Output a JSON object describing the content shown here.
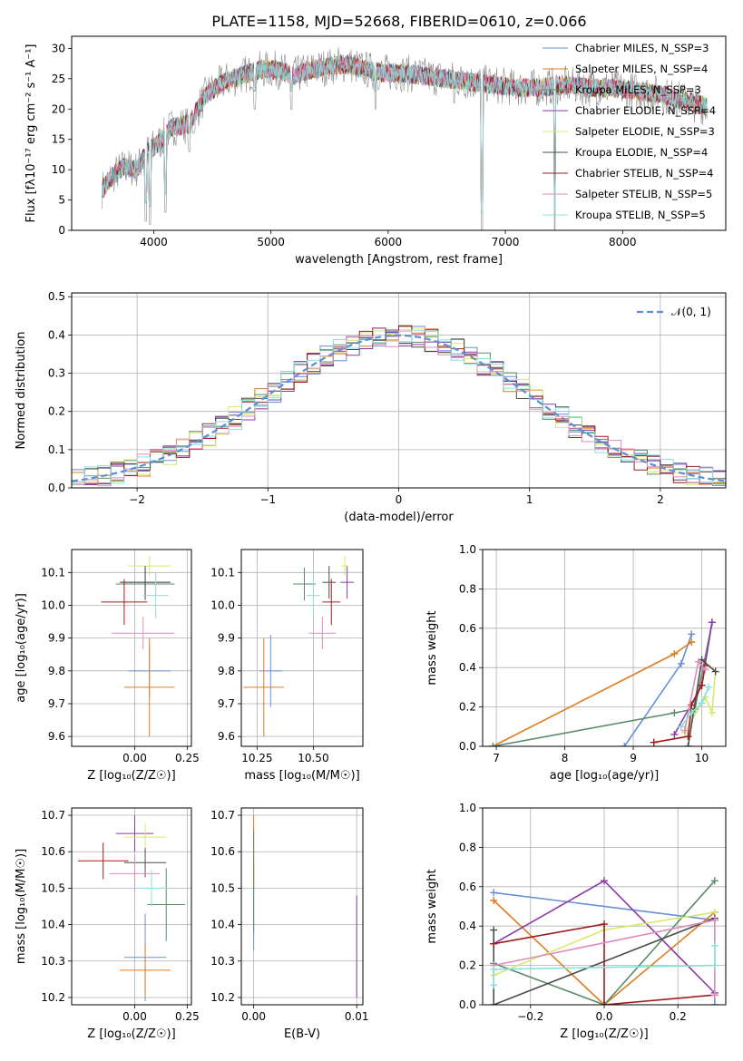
{
  "palette": [
    "#6a8fd6",
    "#e07b1e",
    "#5b8c6a",
    "#8e3aa9",
    "#d4ea6b",
    "#4d4d4d",
    "#a01c1c",
    "#e08cbf",
    "#86e0dc"
  ],
  "figure_title": "PLATE=1158, MJD=52668, FIBERID=0610, z=0.066",
  "chart_data": [
    {
      "id": "spectrum",
      "type": "line",
      "xlabel": "wavelength [Angstrom, rest frame]",
      "ylabel": "Flux [fλ10⁻¹⁷ erg cm⁻² s⁻¹ A⁻¹]",
      "xlim": [
        3300,
        8880
      ],
      "ylim": [
        0,
        32
      ],
      "xticks": [
        4000,
        5000,
        6000,
        7000,
        8000
      ],
      "yticks": [
        0,
        5,
        10,
        15,
        20,
        25,
        30
      ],
      "grid": false,
      "legend_position": "right",
      "legend": [
        "Chabrier MILES, N_SSP=3",
        "Salpeter MILES, N_SSP=4",
        "Kroupa MILES, N_SSP=3",
        "Chabrier ELODIE, N_SSP=4",
        "Salpeter ELODIE, N_SSP=3",
        "Kroupa ELODIE, N_SSP=4",
        "Chabrier STELIB, N_SSP=4",
        "Salpeter STELIB, N_SSP=5",
        "Kroupa STELIB, N_SSP=5"
      ],
      "legend_colors": [
        "#6a8fd6",
        "#e07b1e",
        "#5b8c6a",
        "#8e3aa9",
        "#d4ea6b",
        "#4d4d4d",
        "#a01c1c",
        "#e08cbf",
        "#86e0dc"
      ],
      "continuum": [
        [
          3550,
          6.5
        ],
        [
          3650,
          9
        ],
        [
          3750,
          10.5
        ],
        [
          3850,
          10
        ],
        [
          3950,
          13
        ],
        [
          4050,
          14.5
        ],
        [
          4150,
          17
        ],
        [
          4300,
          17.5
        ],
        [
          4450,
          22.5
        ],
        [
          4600,
          24.5
        ],
        [
          4750,
          25.5
        ],
        [
          4900,
          26.5
        ],
        [
          5050,
          26.5
        ],
        [
          5200,
          25.5
        ],
        [
          5350,
          26.5
        ],
        [
          5500,
          27
        ],
        [
          5650,
          27.5
        ],
        [
          5800,
          26.5
        ],
        [
          5950,
          26
        ],
        [
          6100,
          26
        ],
        [
          6300,
          25.5
        ],
        [
          6500,
          25
        ],
        [
          6700,
          24.5
        ],
        [
          6900,
          24
        ],
        [
          7100,
          23.5
        ],
        [
          7300,
          23.5
        ],
        [
          7500,
          24
        ],
        [
          7700,
          23.5
        ],
        [
          7900,
          23.5
        ],
        [
          8100,
          23
        ],
        [
          8300,
          22.5
        ],
        [
          8500,
          21.5
        ],
        [
          8700,
          20.5
        ]
      ],
      "absorption_lines": [
        [
          3933,
          1.5
        ],
        [
          3968,
          1
        ],
        [
          4101,
          3
        ],
        [
          4304,
          13
        ],
        [
          4340,
          16
        ],
        [
          4861,
          20
        ],
        [
          5175,
          20
        ],
        [
          5890,
          20
        ],
        [
          6563,
          21
        ],
        [
          6800,
          0
        ],
        [
          7420,
          0
        ]
      ]
    },
    {
      "id": "residuals",
      "type": "histogram",
      "xlabel": "(data-model)/error",
      "ylabel": "Normed distribution",
      "xlim": [
        -2.5,
        2.5
      ],
      "ylim": [
        0,
        0.51
      ],
      "xticks": [
        -2,
        -1,
        0,
        1,
        2
      ],
      "yticks": [
        0.0,
        0.1,
        0.2,
        0.3,
        0.4,
        0.5
      ],
      "grid": true,
      "legend": "𝒩(0, 1)",
      "legend_position": "top-right",
      "normal_curve": {
        "mean": 0,
        "sigma": 1
      },
      "bin_width": 0.1
    },
    {
      "id": "age_vs_z",
      "type": "errorbar",
      "xlabel": "Z [log₁₀(Z/Z☉)]",
      "ylabel": "age  [log₁₀(age/yr)]",
      "xlim": [
        -0.3,
        0.27
      ],
      "ylim": [
        9.57,
        10.17
      ],
      "xticks": [
        0.0,
        0.25
      ],
      "yticks": [
        9.6,
        9.7,
        9.8,
        9.9,
        10.0,
        10.1
      ],
      "grid": true,
      "points": [
        {
          "x": 0.07,
          "y": 9.8,
          "xerr": 0.1,
          "yerr": 0.08
        },
        {
          "x": 0.07,
          "y": 9.75,
          "xerr": 0.12,
          "yerr": 0.15
        },
        {
          "x": 0.05,
          "y": 10.065,
          "xerr": 0.14,
          "yerr": 0.05
        },
        {
          "x": 0.05,
          "y": 10.07,
          "xerr": 0.12,
          "yerr": 0.05
        },
        {
          "x": 0.07,
          "y": 10.12,
          "xerr": 0.1,
          "yerr": 0.03
        },
        {
          "x": 0.05,
          "y": 10.07,
          "xerr": 0.12,
          "yerr": 0.05
        },
        {
          "x": -0.05,
          "y": 10.01,
          "xerr": 0.11,
          "yerr": 0.07
        },
        {
          "x": 0.04,
          "y": 9.915,
          "xerr": 0.15,
          "yerr": 0.05
        },
        {
          "x": 0.1,
          "y": 10.03,
          "xerr": 0.06,
          "yerr": 0.07
        }
      ]
    },
    {
      "id": "age_vs_mass",
      "type": "errorbar",
      "xlabel": "mass [log₁₀(M/M☉)]",
      "ylabel": "",
      "xlim": [
        10.18,
        10.72
      ],
      "ylim": [
        9.57,
        10.17
      ],
      "xticks": [
        10.25,
        10.5
      ],
      "yticks": [
        9.6,
        9.7,
        9.8,
        9.9,
        10.0,
        10.1
      ],
      "grid": true,
      "points": [
        {
          "x": 10.31,
          "y": 9.8,
          "xerr": 0.05,
          "yerr": 0.11
        },
        {
          "x": 10.28,
          "y": 9.75,
          "xerr": 0.09,
          "yerr": 0.15
        },
        {
          "x": 10.46,
          "y": 10.065,
          "xerr": 0.05,
          "yerr": 0.05
        },
        {
          "x": 10.65,
          "y": 10.07,
          "xerr": 0.03,
          "yerr": 0.05
        },
        {
          "x": 10.64,
          "y": 10.12,
          "xerr": 0.02,
          "yerr": 0.03
        },
        {
          "x": 10.57,
          "y": 10.07,
          "xerr": 0.03,
          "yerr": 0.05
        },
        {
          "x": 10.58,
          "y": 10.01,
          "xerr": 0.04,
          "yerr": 0.07
        },
        {
          "x": 10.54,
          "y": 9.915,
          "xerr": 0.06,
          "yerr": 0.05
        },
        {
          "x": 10.5,
          "y": 10.03,
          "xerr": 0.03,
          "yerr": 0.07
        }
      ]
    },
    {
      "id": "weight_vs_age",
      "type": "line",
      "xlabel": "age  [log₁₀(age/yr)]",
      "ylabel": "mass weight",
      "xlim": [
        6.8,
        10.35
      ],
      "ylim": [
        0,
        1
      ],
      "xticks": [
        7,
        8,
        9,
        10
      ],
      "yticks": [
        0.0,
        0.2,
        0.4,
        0.6,
        0.8,
        1.0
      ],
      "grid": true,
      "series": [
        [
          [
            8.87,
            0
          ],
          [
            9.7,
            0.42
          ],
          [
            9.85,
            0.57
          ]
        ],
        [
          [
            6.95,
            0
          ],
          [
            9.6,
            0.47
          ],
          [
            9.85,
            0.53
          ]
        ],
        [
          [
            6.95,
            0
          ],
          [
            9.6,
            0.17
          ],
          [
            9.9,
            0.19
          ],
          [
            10.15,
            0.63
          ]
        ],
        [
          [
            9.6,
            0.06
          ],
          [
            10.0,
            0.31
          ],
          [
            10.15,
            0.63
          ]
        ],
        [
          [
            9.75,
            0.07
          ],
          [
            10.05,
            0.25
          ],
          [
            10.15,
            0.17
          ],
          [
            10.2,
            0.38
          ]
        ],
        [
          [
            9.8,
            0.0
          ],
          [
            10.0,
            0.44
          ],
          [
            10.2,
            0.38
          ]
        ],
        [
          [
            9.3,
            0.02
          ],
          [
            9.8,
            0.05
          ],
          [
            9.85,
            0.21
          ],
          [
            10.0,
            0.31
          ],
          [
            10.05,
            0.41
          ]
        ],
        [
          [
            9.75,
            0.08
          ],
          [
            9.95,
            0.43
          ],
          [
            10.05,
            0.39
          ]
        ],
        [
          [
            9.7,
            0.1
          ],
          [
            9.85,
            0.17
          ],
          [
            10.0,
            0.22
          ],
          [
            10.1,
            0.3
          ]
        ]
      ]
    },
    {
      "id": "mass_vs_z",
      "type": "errorbar",
      "xlabel": "Z [log₁₀(Z/Z☉)]",
      "ylabel": "mass [log₁₀(M/M☉)]",
      "xlim": [
        -0.3,
        0.27
      ],
      "ylim": [
        10.18,
        10.72
      ],
      "xticks": [
        0.0,
        0.25
      ],
      "yticks": [
        10.2,
        10.3,
        10.4,
        10.5,
        10.6,
        10.7
      ],
      "grid": true,
      "points": [
        {
          "x": 0.05,
          "y": 10.31,
          "xerr": 0.1,
          "yerr": 0.12
        },
        {
          "x": 0.05,
          "y": 10.275,
          "xerr": 0.12,
          "yerr": 0.07
        },
        {
          "x": 0.15,
          "y": 10.455,
          "xerr": 0.09,
          "yerr": 0.1
        },
        {
          "x": 0.0,
          "y": 10.65,
          "xerr": 0.09,
          "yerr": 0.05
        },
        {
          "x": 0.05,
          "y": 10.64,
          "xerr": 0.1,
          "yerr": 0.04
        },
        {
          "x": 0.05,
          "y": 10.57,
          "xerr": 0.1,
          "yerr": 0.04
        },
        {
          "x": -0.15,
          "y": 10.575,
          "xerr": 0.12,
          "yerr": 0.05
        },
        {
          "x": 0.0,
          "y": 10.54,
          "xerr": 0.12,
          "yerr": 0.05
        },
        {
          "x": 0.08,
          "y": 10.5,
          "xerr": 0.08,
          "yerr": 0.05
        }
      ]
    },
    {
      "id": "mass_vs_ebv",
      "type": "errorbar",
      "xlabel": "E(B-V)",
      "ylabel": "",
      "xlim": [
        -0.0012,
        0.0106
      ],
      "ylim": [
        10.18,
        10.72
      ],
      "xticks": [
        0.0,
        0.01
      ],
      "yticks": [
        10.2,
        10.3,
        10.4,
        10.5,
        10.6,
        10.7
      ],
      "grid": true,
      "points": [
        {
          "x": 0.0,
          "y": 10.45,
          "xerr": 0,
          "yerr": 0.12
        },
        {
          "x": 0.0,
          "y": 10.6,
          "xerr": 0,
          "yerr": 0.1
        },
        {
          "x": 0.0,
          "y": 10.52,
          "xerr": 0,
          "yerr": 0.14
        },
        {
          "x": 0.01,
          "y": 10.34,
          "xerr": 0,
          "yerr": 0.14
        }
      ]
    },
    {
      "id": "weight_vs_z",
      "type": "line",
      "xlabel": "Z [log₁₀(Z/Z☉)]",
      "ylabel": "mass weight",
      "xlim": [
        -0.33,
        0.33
      ],
      "ylim": [
        0,
        1
      ],
      "xticks": [
        -0.2,
        0.0,
        0.2
      ],
      "yticks": [
        0.0,
        0.2,
        0.4,
        0.6,
        0.8,
        1.0
      ],
      "grid": true,
      "series": [
        [
          [
            -0.3,
            0.57
          ],
          [
            0.3,
            0.43
          ],
          [
            0.3,
            0.0
          ]
        ],
        [
          [
            -0.3,
            0.53
          ],
          [
            0.0,
            0.0
          ],
          [
            0.3,
            0.47
          ]
        ],
        [
          [
            -0.3,
            0.21
          ],
          [
            0.0,
            0.0
          ],
          [
            0.3,
            0.63
          ]
        ],
        [
          [
            -0.3,
            0.31
          ],
          [
            0.0,
            0.63
          ],
          [
            0.3,
            0.06
          ]
        ],
        [
          [
            -0.3,
            0.15
          ],
          [
            0.0,
            0.38
          ],
          [
            0.3,
            0.47
          ]
        ],
        [
          [
            -0.3,
            0.38
          ],
          [
            -0.3,
            0.0
          ],
          [
            0.3,
            0.44
          ]
        ],
        [
          [
            -0.3,
            0.31
          ],
          [
            0.0,
            0.41
          ],
          [
            0.0,
            0.0
          ],
          [
            0.3,
            0.05
          ]
        ],
        [
          [
            -0.3,
            0.2
          ],
          [
            0.3,
            0.43
          ],
          [
            0.3,
            0.05
          ]
        ],
        [
          [
            -0.3,
            0.1
          ],
          [
            -0.3,
            0.18
          ],
          [
            0.3,
            0.2
          ],
          [
            0.3,
            0.3
          ]
        ]
      ]
    }
  ]
}
